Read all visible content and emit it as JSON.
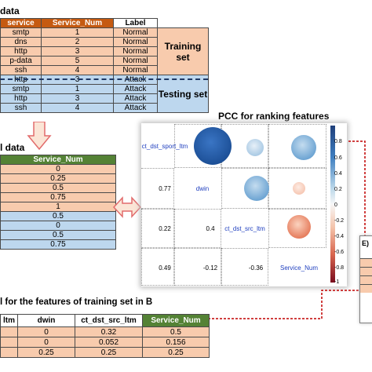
{
  "panel_a": {
    "title": "data",
    "headers": [
      "service",
      "Service_Num",
      "Label"
    ],
    "rows": [
      [
        "smtp",
        "1",
        "Normal"
      ],
      [
        "dns",
        "2",
        "Normal"
      ],
      [
        "http",
        "3",
        "Normal"
      ],
      [
        "p-data",
        "5",
        "Normal"
      ],
      [
        "ssh",
        "4",
        "Normal"
      ],
      [
        "http",
        "3",
        "Attack"
      ],
      [
        "smtp",
        "1",
        "Attack"
      ],
      [
        "http",
        "3",
        "Attack"
      ],
      [
        "ssh",
        "4",
        "Attack"
      ]
    ],
    "training_label": "Training set",
    "testing_label": "Testing set"
  },
  "panel_b": {
    "title": "l data",
    "header": "Service_Num",
    "values": [
      "0",
      "0.25",
      "0.5",
      "0.75",
      "1",
      "0.5",
      "0",
      "0.5",
      "0.75"
    ]
  },
  "pcc": {
    "title": "PCC for ranking features",
    "features": [
      "ct_dst_sport_ltm",
      "dwin",
      "ct_dst_src_ltm",
      "Service_Num"
    ],
    "lower_values": [
      "0.77",
      "0.22",
      "0.4",
      "0.49",
      "-0.12",
      "-0.36"
    ],
    "colorbar_ticks": [
      "0.8",
      "0.6",
      "0.4",
      "0.2",
      "0",
      "-0.2",
      "-0.4",
      "-0.6",
      "-0.8",
      "-1"
    ],
    "colors": {
      "positive": "#2a5fa6",
      "negative": "#b2182b"
    }
  },
  "panel_bottom": {
    "title": "l for the features of training set  in B",
    "headers": [
      "ltm",
      "dwin",
      "ct_dst_src_ltm",
      "Service_Num"
    ],
    "rows": [
      [
        "",
        "0",
        "0.32",
        "0.5"
      ],
      [
        "",
        "0",
        "0.052",
        "0.156"
      ],
      [
        "",
        "0.25",
        "0.25",
        "0.25"
      ]
    ]
  },
  "panel_e": {
    "label": "E)"
  }
}
